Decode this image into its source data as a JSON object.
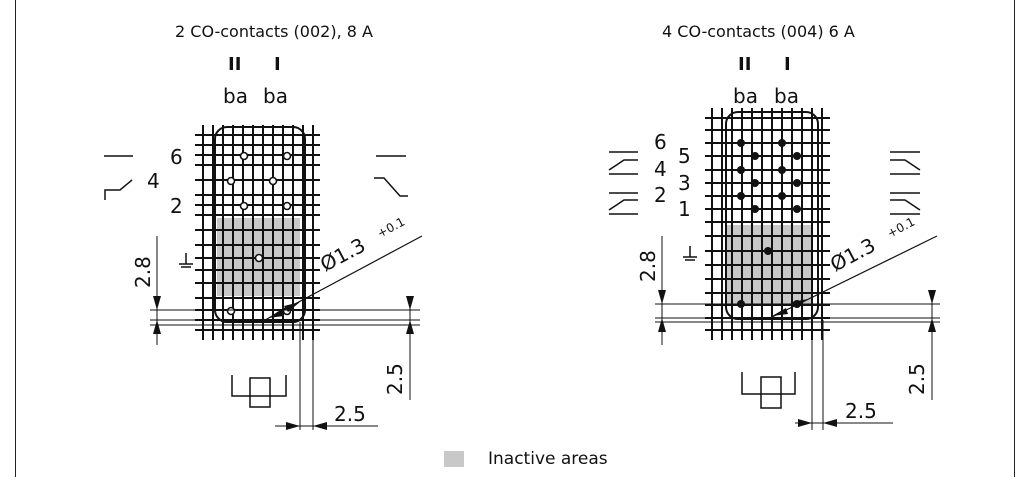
{
  "diagrams": [
    {
      "title": "2 CO-contacts (002), 8 A",
      "roman_labels": [
        "II",
        "I"
      ],
      "contact_labels": [
        "ba",
        "ba"
      ],
      "pin_numbers": [
        "6",
        "4",
        "2"
      ],
      "dimensions": {
        "diameter": "Ø1.3",
        "tolerance": "+0.1",
        "vertical_spacing": "2.8",
        "right_offset": "2.5",
        "bottom_offset": "2.5"
      }
    },
    {
      "title": "4 CO-contacts (004) 6 A",
      "roman_labels": [
        "II",
        "I"
      ],
      "contact_labels": [
        "ba",
        "ba"
      ],
      "pin_numbers": [
        "6",
        "5",
        "4",
        "3",
        "2",
        "1"
      ],
      "dimensions": {
        "diameter": "Ø1.3",
        "tolerance": "+0.1",
        "vertical_spacing": "2.8",
        "right_offset": "2.5",
        "bottom_offset": "2.5"
      }
    }
  ],
  "legend": {
    "label": "Inactive areas",
    "swatch_color": "#c8c8c8"
  }
}
